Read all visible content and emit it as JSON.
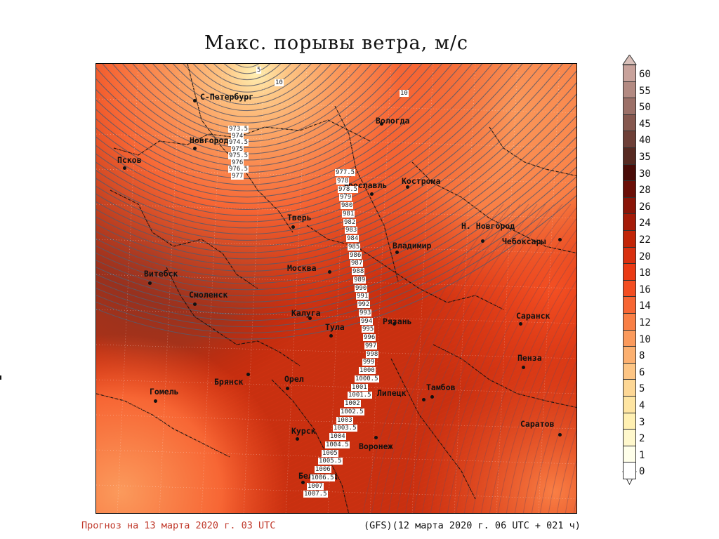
{
  "title": "Макс. порывы ветра, м/с",
  "footer": {
    "forecast": "Прогноз на 13 марта 2020 г. 03 UTC",
    "model": "(GFS)(12 марта 2020 г. 06 UTC + 021 ч)"
  },
  "legend": {
    "items": [
      {
        "value": "60",
        "color": "#c8a29b"
      },
      {
        "value": "55",
        "color": "#b38a82"
      },
      {
        "value": "50",
        "color": "#9c7068"
      },
      {
        "value": "45",
        "color": "#86584f"
      },
      {
        "value": "40",
        "color": "#6e4038"
      },
      {
        "value": "35",
        "color": "#572a22"
      },
      {
        "value": "30",
        "color": "#4a0c08"
      },
      {
        "value": "28",
        "color": "#6b0f08"
      },
      {
        "value": "26",
        "color": "#8a1508"
      },
      {
        "value": "24",
        "color": "#a51b08"
      },
      {
        "value": "22",
        "color": "#c22508"
      },
      {
        "value": "20",
        "color": "#d93010"
      },
      {
        "value": "18",
        "color": "#ea3a14"
      },
      {
        "value": "16",
        "color": "#f34e22"
      },
      {
        "value": "14",
        "color": "#f76634"
      },
      {
        "value": "12",
        "color": "#f97f45"
      },
      {
        "value": "10",
        "color": "#fb9a5c"
      },
      {
        "value": "8",
        "color": "#fcb070"
      },
      {
        "value": "6",
        "color": "#fdc584"
      },
      {
        "value": "5",
        "color": "#fdd795"
      },
      {
        "value": "4",
        "color": "#fee5a2"
      },
      {
        "value": "3",
        "color": "#fff0b2"
      },
      {
        "value": "2",
        "color": "#fff8cc"
      },
      {
        "value": "1",
        "color": "#ffffea"
      },
      {
        "value": "0",
        "color": "#ffffff"
      }
    ]
  },
  "cities": [
    {
      "name": "С-Петербург"
    },
    {
      "name": "Вологда"
    },
    {
      "name": "Новгород"
    },
    {
      "name": "Псков"
    },
    {
      "name": "Ярославль"
    },
    {
      "name": "Кострома"
    },
    {
      "name": "Тверь"
    },
    {
      "name": "Н. Новгород"
    },
    {
      "name": "Чебоксары"
    },
    {
      "name": "Владимир"
    },
    {
      "name": "Москва"
    },
    {
      "name": "Витебск"
    },
    {
      "name": "Смоленск"
    },
    {
      "name": "Калуга"
    },
    {
      "name": "Тула"
    },
    {
      "name": "Рязань"
    },
    {
      "name": "Саранск"
    },
    {
      "name": "Пенза"
    },
    {
      "name": "Брянск"
    },
    {
      "name": "Орел"
    },
    {
      "name": "Гомель"
    },
    {
      "name": "Тамбов"
    },
    {
      "name": "Липецк"
    },
    {
      "name": "Курск"
    },
    {
      "name": "Воронеж"
    },
    {
      "name": "Саратов"
    },
    {
      "name": "Белгород"
    }
  ],
  "isobar_labels": [
    "973.5",
    "974",
    "974.5",
    "975",
    "975.5",
    "976",
    "976.5",
    "977",
    "977.5",
    "978",
    "978.5",
    "979",
    "980",
    "981",
    "982",
    "983",
    "984",
    "985",
    "986",
    "987",
    "988",
    "989",
    "990",
    "991",
    "992",
    "993",
    "994",
    "995",
    "996",
    "997",
    "998",
    "999",
    "1000",
    "1000.5",
    "1001",
    "1001.5",
    "1002",
    "1002.5",
    "1003",
    "1003.5",
    "1004",
    "1004.5",
    "1005",
    "1005.5",
    "1006",
    "1006.5",
    "1007",
    "1007.5"
  ],
  "wind_labels": [
    "5",
    "10",
    "10"
  ]
}
